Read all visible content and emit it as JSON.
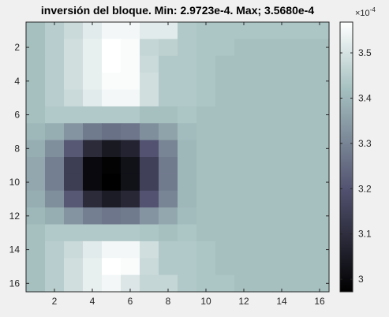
{
  "chart_data": {
    "type": "heatmap",
    "title": "inversión del bloque. Min: 2.9723e-4. Max; 3.5680e-4",
    "xlabel": "",
    "ylabel": "",
    "rows": 16,
    "cols": 16,
    "xlim": [
      0.5,
      16.5
    ],
    "ylim": [
      0.5,
      16.5
    ],
    "x_ticks": [
      2,
      4,
      6,
      8,
      10,
      12,
      14,
      16
    ],
    "y_ticks": [
      2,
      4,
      6,
      8,
      10,
      12,
      14,
      16
    ],
    "y_direction": "reverse",
    "colormap": "bone",
    "colorbar": {
      "range": [
        2.9723,
        3.568
      ],
      "ticks": [
        3.0,
        3.1,
        3.2,
        3.3,
        3.4,
        3.5
      ],
      "tick_labels": [
        "3",
        "3.1",
        "3.2",
        "3.3",
        "3.4",
        "3.5"
      ],
      "multiplier_base": "×10",
      "multiplier_exp": "-4",
      "placement": "right"
    },
    "values": [
      [
        3.42,
        3.45,
        3.48,
        3.52,
        3.55,
        3.55,
        3.52,
        3.52,
        3.44,
        3.43,
        3.43,
        3.43,
        3.43,
        3.43,
        3.43,
        3.43
      ],
      [
        3.42,
        3.45,
        3.49,
        3.53,
        3.57,
        3.56,
        3.47,
        3.46,
        3.44,
        3.43,
        3.43,
        3.42,
        3.42,
        3.42,
        3.42,
        3.42
      ],
      [
        3.42,
        3.45,
        3.49,
        3.53,
        3.57,
        3.56,
        3.48,
        3.44,
        3.44,
        3.43,
        3.42,
        3.42,
        3.42,
        3.42,
        3.42,
        3.42
      ],
      [
        3.42,
        3.45,
        3.49,
        3.53,
        3.56,
        3.56,
        3.49,
        3.44,
        3.44,
        3.43,
        3.42,
        3.42,
        3.42,
        3.42,
        3.42,
        3.42
      ],
      [
        3.42,
        3.45,
        3.48,
        3.52,
        3.55,
        3.55,
        3.49,
        3.44,
        3.44,
        3.43,
        3.42,
        3.42,
        3.42,
        3.42,
        3.42,
        3.42
      ],
      [
        3.42,
        3.44,
        3.44,
        3.44,
        3.44,
        3.44,
        3.42,
        3.42,
        3.43,
        3.42,
        3.42,
        3.42,
        3.42,
        3.42,
        3.42,
        3.42
      ],
      [
        3.4,
        3.38,
        3.33,
        3.28,
        3.26,
        3.27,
        3.32,
        3.36,
        3.41,
        3.42,
        3.42,
        3.42,
        3.42,
        3.42,
        3.42,
        3.42
      ],
      [
        3.38,
        3.32,
        3.21,
        3.09,
        3.04,
        3.07,
        3.2,
        3.3,
        3.4,
        3.42,
        3.42,
        3.42,
        3.42,
        3.42,
        3.42,
        3.42
      ],
      [
        3.37,
        3.29,
        3.14,
        3.0,
        2.98,
        3.02,
        3.15,
        3.28,
        3.4,
        3.42,
        3.42,
        3.42,
        3.42,
        3.42,
        3.42,
        3.42
      ],
      [
        3.37,
        3.29,
        3.14,
        3.0,
        2.97,
        3.02,
        3.15,
        3.28,
        3.4,
        3.42,
        3.42,
        3.42,
        3.42,
        3.42,
        3.42,
        3.42
      ],
      [
        3.38,
        3.32,
        3.21,
        3.09,
        3.05,
        3.08,
        3.2,
        3.3,
        3.4,
        3.42,
        3.42,
        3.42,
        3.42,
        3.42,
        3.42,
        3.42
      ],
      [
        3.4,
        3.38,
        3.33,
        3.29,
        3.27,
        3.28,
        3.33,
        3.37,
        3.41,
        3.42,
        3.42,
        3.42,
        3.42,
        3.42,
        3.42,
        3.42
      ],
      [
        3.42,
        3.44,
        3.44,
        3.44,
        3.44,
        3.44,
        3.43,
        3.42,
        3.43,
        3.42,
        3.42,
        3.42,
        3.42,
        3.42,
        3.42,
        3.42
      ],
      [
        3.42,
        3.45,
        3.48,
        3.52,
        3.55,
        3.55,
        3.49,
        3.44,
        3.44,
        3.43,
        3.42,
        3.42,
        3.42,
        3.42,
        3.42,
        3.42
      ],
      [
        3.42,
        3.45,
        3.49,
        3.53,
        3.57,
        3.56,
        3.48,
        3.44,
        3.44,
        3.43,
        3.42,
        3.42,
        3.42,
        3.42,
        3.42,
        3.42
      ],
      [
        3.42,
        3.45,
        3.49,
        3.53,
        3.55,
        3.51,
        3.47,
        3.47,
        3.44,
        3.43,
        3.43,
        3.42,
        3.42,
        3.42,
        3.42,
        3.42
      ]
    ]
  }
}
